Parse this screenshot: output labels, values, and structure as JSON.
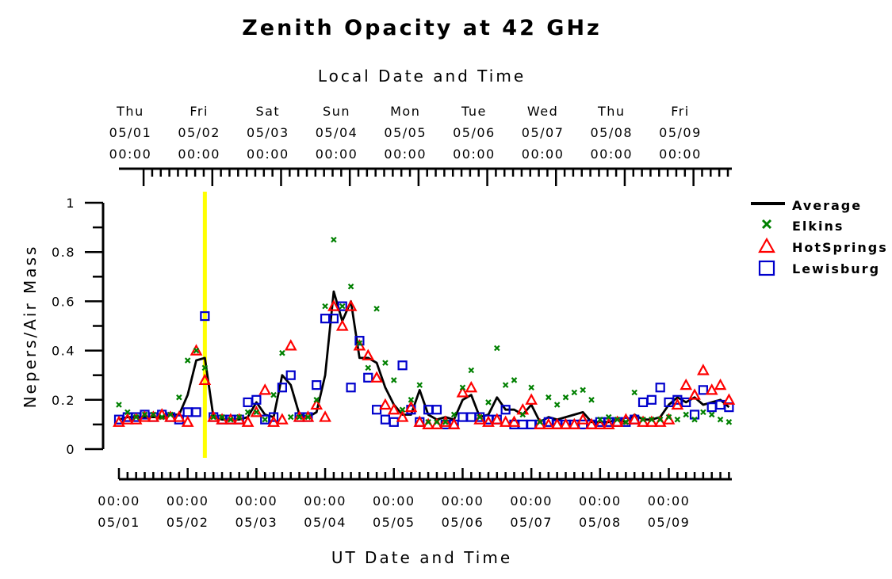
{
  "chart_data": {
    "type": "scatter",
    "title": "Zenith Opacity at 42 GHz",
    "top_axis_label": "Local Date and Time",
    "xlabel": "UT Date and Time",
    "ylabel": "Nepers/Air Mass",
    "ylim": [
      0,
      1
    ],
    "yticks": [
      0,
      0.2,
      0.4,
      0.6,
      0.8,
      1
    ],
    "ytick_labels": [
      "0",
      "0.2",
      "0.4",
      "0.6",
      "0.8",
      "1"
    ],
    "xlim": [
      "2008-05-01T00:00",
      "2008-05-09T22:00"
    ],
    "highlight_time": "2008-05-02T06:00",
    "highlight_color": "#ffff00",
    "bottom_ticks": [
      {
        "date": "05/01",
        "time": "00:00"
      },
      {
        "date": "05/02",
        "time": "00:00"
      },
      {
        "date": "05/03",
        "time": "00:00"
      },
      {
        "date": "05/04",
        "time": "00:00"
      },
      {
        "date": "05/05",
        "time": "00:00"
      },
      {
        "date": "05/06",
        "time": "00:00"
      },
      {
        "date": "05/07",
        "time": "00:00"
      },
      {
        "date": "05/08",
        "time": "00:00"
      },
      {
        "date": "05/09",
        "time": "00:00"
      }
    ],
    "top_ticks": [
      {
        "day": "Thu",
        "date": "05/01",
        "time": "00:00"
      },
      {
        "day": "Fri",
        "date": "05/02",
        "time": "00:00"
      },
      {
        "day": "Sat",
        "date": "05/03",
        "time": "00:00"
      },
      {
        "day": "Sun",
        "date": "05/04",
        "time": "00:00"
      },
      {
        "day": "Mon",
        "date": "05/05",
        "time": "00:00"
      },
      {
        "day": "Tue",
        "date": "05/06",
        "time": "00:00"
      },
      {
        "day": "Wed",
        "date": "05/07",
        "time": "00:00"
      },
      {
        "day": "Thu",
        "date": "05/08",
        "time": "00:00"
      },
      {
        "day": "Fri",
        "date": "05/09",
        "time": "00:00"
      }
    ],
    "legend_position": "right",
    "series": [
      {
        "name": "Average",
        "marker": "line",
        "color": "#000000",
        "x": [
          "2008-05-01T00:00",
          "2008-05-01T03:00",
          "2008-05-01T06:00",
          "2008-05-01T09:00",
          "2008-05-01T12:00",
          "2008-05-01T15:00",
          "2008-05-01T18:00",
          "2008-05-01T21:00",
          "2008-05-02T00:00",
          "2008-05-02T03:00",
          "2008-05-02T06:00",
          "2008-05-02T09:00",
          "2008-05-02T12:00",
          "2008-05-02T15:00",
          "2008-05-02T18:00",
          "2008-05-02T21:00",
          "2008-05-03T00:00",
          "2008-05-03T03:00",
          "2008-05-03T06:00",
          "2008-05-03T09:00",
          "2008-05-03T12:00",
          "2008-05-03T15:00",
          "2008-05-03T18:00",
          "2008-05-03T21:00",
          "2008-05-04T00:00",
          "2008-05-04T03:00",
          "2008-05-04T06:00",
          "2008-05-04T09:00",
          "2008-05-04T12:00",
          "2008-05-04T15:00",
          "2008-05-04T18:00",
          "2008-05-04T21:00",
          "2008-05-05T00:00",
          "2008-05-05T03:00",
          "2008-05-05T06:00",
          "2008-05-05T09:00",
          "2008-05-05T12:00",
          "2008-05-05T15:00",
          "2008-05-05T18:00",
          "2008-05-05T21:00",
          "2008-05-06T00:00",
          "2008-05-06T03:00",
          "2008-05-06T06:00",
          "2008-05-06T09:00",
          "2008-05-06T12:00",
          "2008-05-06T15:00",
          "2008-05-06T18:00",
          "2008-05-06T21:00",
          "2008-05-07T00:00",
          "2008-05-07T03:00",
          "2008-05-07T06:00",
          "2008-05-07T09:00",
          "2008-05-07T12:00",
          "2008-05-07T15:00",
          "2008-05-07T18:00",
          "2008-05-07T21:00",
          "2008-05-08T00:00",
          "2008-05-08T03:00",
          "2008-05-08T06:00",
          "2008-05-08T09:00",
          "2008-05-08T12:00",
          "2008-05-08T15:00",
          "2008-05-08T18:00",
          "2008-05-08T21:00",
          "2008-05-09T00:00",
          "2008-05-09T03:00",
          "2008-05-09T06:00",
          "2008-05-09T09:00",
          "2008-05-09T12:00",
          "2008-05-09T15:00",
          "2008-05-09T18:00",
          "2008-05-09T21:00"
        ],
        "values": [
          0.12,
          0.13,
          0.13,
          0.13,
          0.13,
          0.13,
          0.14,
          0.14,
          0.22,
          0.36,
          0.37,
          0.13,
          0.12,
          0.12,
          0.12,
          0.13,
          0.19,
          0.14,
          0.13,
          0.3,
          0.26,
          0.14,
          0.13,
          0.15,
          0.3,
          0.64,
          0.52,
          0.6,
          0.37,
          0.37,
          0.35,
          0.25,
          0.18,
          0.14,
          0.14,
          0.24,
          0.14,
          0.12,
          0.13,
          0.12,
          0.2,
          0.22,
          0.13,
          0.14,
          0.21,
          0.16,
          0.16,
          0.14,
          0.18,
          0.11,
          0.13,
          0.12,
          0.13,
          0.14,
          0.15,
          0.11,
          0.11,
          0.11,
          0.12,
          0.11,
          0.14,
          0.12,
          0.12,
          0.13,
          0.18,
          0.21,
          0.19,
          0.21,
          0.18,
          0.19,
          0.2,
          0.17
        ]
      },
      {
        "name": "Elkins",
        "marker": "x",
        "color": "#008000",
        "x": [
          "2008-05-01T00:00",
          "2008-05-01T03:00",
          "2008-05-01T06:00",
          "2008-05-01T09:00",
          "2008-05-01T12:00",
          "2008-05-01T15:00",
          "2008-05-01T18:00",
          "2008-05-01T21:00",
          "2008-05-02T00:00",
          "2008-05-02T03:00",
          "2008-05-02T06:00",
          "2008-05-02T09:00",
          "2008-05-02T12:00",
          "2008-05-02T15:00",
          "2008-05-02T18:00",
          "2008-05-02T21:00",
          "2008-05-03T00:00",
          "2008-05-03T03:00",
          "2008-05-03T06:00",
          "2008-05-03T09:00",
          "2008-05-03T12:00",
          "2008-05-03T15:00",
          "2008-05-03T18:00",
          "2008-05-03T21:00",
          "2008-05-04T00:00",
          "2008-05-04T03:00",
          "2008-05-04T06:00",
          "2008-05-04T09:00",
          "2008-05-04T12:00",
          "2008-05-04T15:00",
          "2008-05-04T18:00",
          "2008-05-04T21:00",
          "2008-05-05T00:00",
          "2008-05-05T03:00",
          "2008-05-05T06:00",
          "2008-05-05T09:00",
          "2008-05-05T12:00",
          "2008-05-05T15:00",
          "2008-05-05T18:00",
          "2008-05-05T21:00",
          "2008-05-06T00:00",
          "2008-05-06T03:00",
          "2008-05-06T06:00",
          "2008-05-06T09:00",
          "2008-05-06T12:00",
          "2008-05-06T15:00",
          "2008-05-06T18:00",
          "2008-05-06T21:00",
          "2008-05-07T00:00",
          "2008-05-07T03:00",
          "2008-05-07T06:00",
          "2008-05-07T09:00",
          "2008-05-07T12:00",
          "2008-05-07T15:00",
          "2008-05-07T18:00",
          "2008-05-07T21:00",
          "2008-05-08T00:00",
          "2008-05-08T03:00",
          "2008-05-08T06:00",
          "2008-05-08T09:00",
          "2008-05-08T12:00",
          "2008-05-08T15:00",
          "2008-05-08T18:00",
          "2008-05-08T21:00",
          "2008-05-09T00:00",
          "2008-05-09T03:00",
          "2008-05-09T06:00",
          "2008-05-09T09:00",
          "2008-05-09T12:00",
          "2008-05-09T15:00",
          "2008-05-09T18:00",
          "2008-05-09T21:00"
        ],
        "values": [
          0.18,
          0.15,
          0.13,
          0.14,
          0.14,
          0.13,
          0.14,
          0.21,
          0.36,
          0.4,
          0.33,
          0.13,
          0.13,
          0.12,
          0.13,
          0.15,
          0.15,
          0.12,
          0.22,
          0.39,
          0.13,
          0.13,
          0.13,
          0.2,
          0.58,
          0.85,
          0.58,
          0.66,
          0.43,
          0.33,
          0.57,
          0.35,
          0.28,
          0.16,
          0.2,
          0.26,
          0.11,
          0.11,
          0.11,
          0.14,
          0.25,
          0.32,
          0.13,
          0.19,
          0.41,
          0.26,
          0.28,
          0.14,
          0.25,
          0.11,
          0.21,
          0.18,
          0.21,
          0.23,
          0.24,
          0.2,
          0.12,
          0.13,
          0.12,
          0.11,
          0.23,
          0.12,
          0.12,
          0.12,
          0.13,
          0.12,
          0.14,
          0.12,
          0.15,
          0.14,
          0.12,
          0.11
        ]
      },
      {
        "name": "HotSprings",
        "marker": "triangle",
        "color": "#ff0000",
        "x": [
          "2008-05-01T00:00",
          "2008-05-01T03:00",
          "2008-05-01T06:00",
          "2008-05-01T09:00",
          "2008-05-01T12:00",
          "2008-05-01T15:00",
          "2008-05-01T18:00",
          "2008-05-01T21:00",
          "2008-05-02T00:00",
          "2008-05-02T03:00",
          "2008-05-02T06:00",
          "2008-05-02T09:00",
          "2008-05-02T12:00",
          "2008-05-02T15:00",
          "2008-05-02T18:00",
          "2008-05-02T21:00",
          "2008-05-03T00:00",
          "2008-05-03T03:00",
          "2008-05-03T06:00",
          "2008-05-03T09:00",
          "2008-05-03T12:00",
          "2008-05-03T15:00",
          "2008-05-03T18:00",
          "2008-05-03T21:00",
          "2008-05-04T00:00",
          "2008-05-04T03:00",
          "2008-05-04T06:00",
          "2008-05-04T09:00",
          "2008-05-04T12:00",
          "2008-05-04T15:00",
          "2008-05-04T18:00",
          "2008-05-04T21:00",
          "2008-05-05T00:00",
          "2008-05-05T03:00",
          "2008-05-05T06:00",
          "2008-05-05T09:00",
          "2008-05-05T12:00",
          "2008-05-05T15:00",
          "2008-05-05T18:00",
          "2008-05-05T21:00",
          "2008-05-06T00:00",
          "2008-05-06T03:00",
          "2008-05-06T06:00",
          "2008-05-06T09:00",
          "2008-05-06T12:00",
          "2008-05-06T15:00",
          "2008-05-06T18:00",
          "2008-05-06T21:00",
          "2008-05-07T00:00",
          "2008-05-07T03:00",
          "2008-05-07T06:00",
          "2008-05-07T09:00",
          "2008-05-07T12:00",
          "2008-05-07T15:00",
          "2008-05-07T18:00",
          "2008-05-07T21:00",
          "2008-05-08T00:00",
          "2008-05-08T03:00",
          "2008-05-08T06:00",
          "2008-05-08T09:00",
          "2008-05-08T12:00",
          "2008-05-08T15:00",
          "2008-05-08T18:00",
          "2008-05-08T21:00",
          "2008-05-09T00:00",
          "2008-05-09T03:00",
          "2008-05-09T06:00",
          "2008-05-09T09:00",
          "2008-05-09T12:00",
          "2008-05-09T15:00",
          "2008-05-09T18:00",
          "2008-05-09T21:00"
        ],
        "values": [
          0.11,
          0.12,
          0.12,
          0.13,
          0.13,
          0.14,
          0.13,
          0.13,
          0.11,
          0.4,
          0.28,
          0.13,
          0.12,
          0.12,
          0.12,
          0.11,
          0.15,
          0.24,
          0.11,
          0.12,
          0.42,
          0.13,
          0.13,
          0.18,
          0.13,
          0.58,
          0.5,
          0.58,
          0.42,
          0.38,
          0.29,
          0.18,
          0.16,
          0.13,
          0.17,
          0.11,
          0.1,
          0.1,
          0.11,
          0.1,
          0.23,
          0.25,
          0.12,
          0.11,
          0.12,
          0.11,
          0.11,
          0.16,
          0.2,
          0.1,
          0.1,
          0.1,
          0.1,
          0.1,
          0.12,
          0.1,
          0.1,
          0.1,
          0.11,
          0.12,
          0.12,
          0.11,
          0.11,
          0.11,
          0.12,
          0.18,
          0.26,
          0.22,
          0.32,
          0.24,
          0.26,
          0.2
        ]
      },
      {
        "name": "Lewisburg",
        "marker": "square",
        "color": "#0000cc",
        "x": [
          "2008-05-01T00:00",
          "2008-05-01T03:00",
          "2008-05-01T06:00",
          "2008-05-01T09:00",
          "2008-05-01T12:00",
          "2008-05-01T15:00",
          "2008-05-01T18:00",
          "2008-05-01T21:00",
          "2008-05-02T00:00",
          "2008-05-02T03:00",
          "2008-05-02T06:00",
          "2008-05-02T09:00",
          "2008-05-02T12:00",
          "2008-05-02T15:00",
          "2008-05-02T18:00",
          "2008-05-02T21:00",
          "2008-05-03T00:00",
          "2008-05-03T03:00",
          "2008-05-03T06:00",
          "2008-05-03T09:00",
          "2008-05-03T12:00",
          "2008-05-03T15:00",
          "2008-05-03T18:00",
          "2008-05-03T21:00",
          "2008-05-04T00:00",
          "2008-05-04T03:00",
          "2008-05-04T06:00",
          "2008-05-04T09:00",
          "2008-05-04T12:00",
          "2008-05-04T15:00",
          "2008-05-04T18:00",
          "2008-05-04T21:00",
          "2008-05-05T00:00",
          "2008-05-05T03:00",
          "2008-05-05T06:00",
          "2008-05-05T09:00",
          "2008-05-05T12:00",
          "2008-05-05T15:00",
          "2008-05-05T18:00",
          "2008-05-05T21:00",
          "2008-05-06T00:00",
          "2008-05-06T03:00",
          "2008-05-06T06:00",
          "2008-05-06T09:00",
          "2008-05-06T12:00",
          "2008-05-06T15:00",
          "2008-05-06T18:00",
          "2008-05-06T21:00",
          "2008-05-07T00:00",
          "2008-05-07T03:00",
          "2008-05-07T06:00",
          "2008-05-07T09:00",
          "2008-05-07T12:00",
          "2008-05-07T15:00",
          "2008-05-07T18:00",
          "2008-05-07T21:00",
          "2008-05-08T00:00",
          "2008-05-08T03:00",
          "2008-05-08T06:00",
          "2008-05-08T09:00",
          "2008-05-08T12:00",
          "2008-05-08T15:00",
          "2008-05-08T18:00",
          "2008-05-08T21:00",
          "2008-05-09T00:00",
          "2008-05-09T03:00",
          "2008-05-09T06:00",
          "2008-05-09T09:00",
          "2008-05-09T12:00",
          "2008-05-09T15:00",
          "2008-05-09T18:00",
          "2008-05-09T21:00"
        ],
        "values": [
          0.12,
          0.13,
          0.13,
          0.14,
          0.13,
          0.14,
          0.13,
          0.12,
          0.15,
          0.15,
          0.54,
          0.13,
          0.12,
          0.12,
          0.12,
          0.19,
          0.2,
          0.12,
          0.13,
          0.25,
          0.3,
          0.13,
          0.13,
          0.26,
          0.53,
          0.53,
          0.58,
          0.25,
          0.44,
          0.29,
          0.16,
          0.12,
          0.11,
          0.34,
          0.16,
          0.11,
          0.16,
          0.16,
          0.1,
          0.1,
          0.13,
          0.13,
          0.13,
          0.12,
          0.12,
          0.16,
          0.1,
          0.1,
          0.1,
          0.1,
          0.11,
          0.1,
          0.1,
          0.1,
          0.1,
          0.1,
          0.11,
          0.11,
          0.11,
          0.11,
          0.12,
          0.19,
          0.2,
          0.25,
          0.19,
          0.2,
          0.19,
          0.14,
          0.24,
          0.17,
          0.18,
          0.17
        ]
      }
    ]
  }
}
